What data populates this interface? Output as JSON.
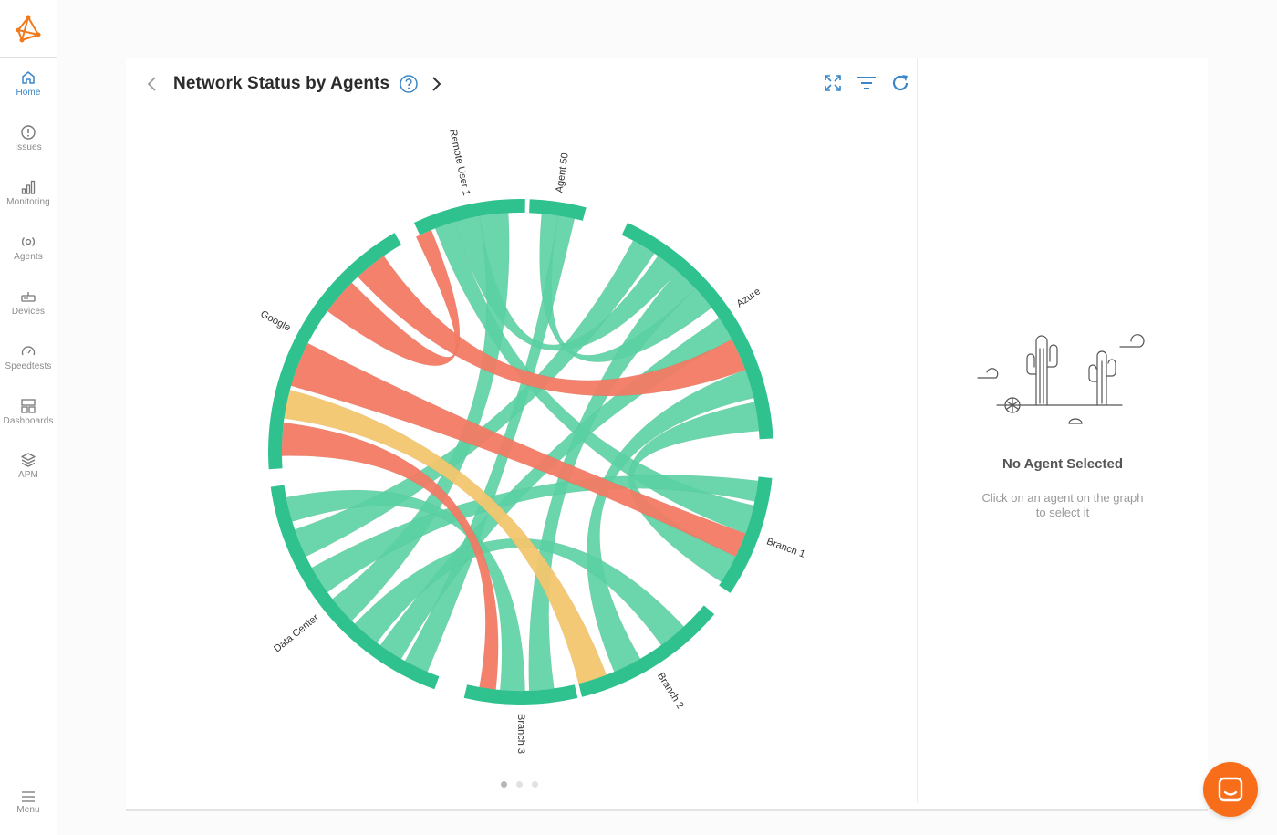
{
  "sidebar": {
    "items": [
      {
        "label": "Home",
        "icon": "home-icon",
        "active": true
      },
      {
        "label": "Issues",
        "icon": "alert-circle-icon"
      },
      {
        "label": "Monitoring",
        "icon": "bar-chart-icon"
      },
      {
        "label": "Agents",
        "icon": "agent-broadcast-icon"
      },
      {
        "label": "Devices",
        "icon": "router-icon"
      },
      {
        "label": "Speedtests",
        "icon": "speedometer-icon"
      },
      {
        "label": "Dashboards",
        "icon": "dashboard-grid-icon"
      },
      {
        "label": "APM",
        "icon": "layers-icon"
      }
    ],
    "menu_label": "Menu"
  },
  "header": {
    "title": "Network Status by Agents"
  },
  "colors": {
    "accent": "#3a86c8",
    "logo": "#f07a1c",
    "ok": "#2fc28f",
    "ok_ribbon": "#5bd0a3",
    "critical": "#f27a64",
    "warning": "#f3c66f",
    "chat": "#f76d1a"
  },
  "chart_data": {
    "type": "chord",
    "groups": [
      {
        "name": "Remote User 1",
        "start": 335,
        "end": 361
      },
      {
        "name": "Agent 50",
        "start": 2,
        "end": 15
      },
      {
        "name": "Azure",
        "start": 25,
        "end": 87
      },
      {
        "name": "Branch 1",
        "start": 96,
        "end": 124
      },
      {
        "name": "Branch 2",
        "start": 130,
        "end": 166
      },
      {
        "name": "Branch 3",
        "start": 167,
        "end": 193
      },
      {
        "name": "Data Center",
        "start": 200,
        "end": 262
      },
      {
        "name": "Google",
        "start": 266,
        "end": 330
      }
    ],
    "ribbons": [
      {
        "a": [
          5,
          9
        ],
        "b": [
          47,
          53
        ],
        "status": "ok"
      },
      {
        "a": [
          9,
          13
        ],
        "b": [
          203,
          209
        ],
        "status": "ok"
      },
      {
        "a": [
          339,
          344
        ],
        "b": [
          103,
          110
        ],
        "status": "ok"
      },
      {
        "a": [
          344,
          350
        ],
        "b": [
          35,
          41
        ],
        "status": "ok"
      },
      {
        "a": [
          350,
          357
        ],
        "b": [
          225,
          232
        ],
        "status": "ok"
      },
      {
        "a": [
          28,
          34
        ],
        "b": [
          244,
          251
        ],
        "status": "ok"
      },
      {
        "a": [
          41,
          47
        ],
        "b": [
          172,
          178
        ],
        "status": "ok"
      },
      {
        "a": [
          56,
          62
        ],
        "b": [
          210,
          216
        ],
        "status": "ok"
      },
      {
        "a": [
          70,
          77
        ],
        "b": [
          150,
          157
        ],
        "status": "ok"
      },
      {
        "a": [
          78,
          85
        ],
        "b": [
          116,
          123
        ],
        "status": "ok"
      },
      {
        "a": [
          97,
          102
        ],
        "b": [
          234,
          241
        ],
        "status": "ok"
      },
      {
        "a": [
          137,
          144
        ],
        "b": [
          217,
          224
        ],
        "status": "ok"
      },
      {
        "a": [
          179,
          185
        ],
        "b": [
          253,
          259
        ],
        "status": "ok"
      },
      {
        "a": [
          62,
          70
        ],
        "b": [
          317,
          325
        ],
        "status": "critical"
      },
      {
        "a": [
          110,
          116
        ],
        "b": [
          286,
          297
        ],
        "status": "critical"
      },
      {
        "a": [
          186,
          190
        ],
        "b": [
          269,
          277
        ],
        "status": "critical"
      },
      {
        "a": [
          334,
          338
        ],
        "b": [
          306,
          315
        ],
        "status": "critical"
      },
      {
        "a": [
          159,
          166
        ],
        "b": [
          278,
          285
        ],
        "status": "warning"
      }
    ]
  },
  "details_panel": {
    "title": "No Agent Selected",
    "subtitle": "Click on an agent on the graph to select it",
    "illustration": "desert-cactus-illustration"
  },
  "pagination": {
    "pages": 3,
    "current": 1
  }
}
